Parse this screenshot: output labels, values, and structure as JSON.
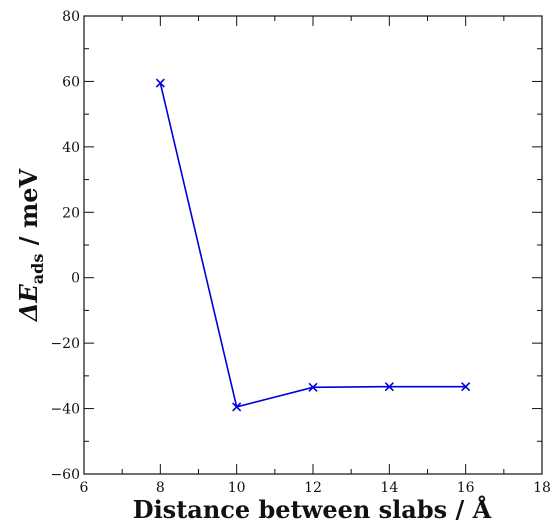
{
  "chart_data": {
    "type": "line",
    "title": "",
    "xlabel": "Distance between slabs / Å",
    "ylabel": {
      "prefix": "ΔE",
      "subscript": "ads",
      "suffix": " / meV"
    },
    "xlim": [
      6,
      18
    ],
    "ylim": [
      -60,
      80
    ],
    "xticks": [
      6,
      8,
      10,
      12,
      14,
      16,
      18
    ],
    "yticks": [
      -60,
      -40,
      -20,
      0,
      20,
      40,
      60,
      80
    ],
    "xtick_labels": [
      "6",
      "8",
      "10",
      "12",
      "14",
      "16",
      "18"
    ],
    "ytick_labels": [
      "−60",
      "−40",
      "−20",
      "0",
      "20",
      "40",
      "60",
      "80"
    ],
    "x_minor_step": 1,
    "y_minor_step": 10,
    "grid": false,
    "legend": "none",
    "series": [
      {
        "marker": "x",
        "color": "#0000dd",
        "x": [
          8,
          10,
          12,
          14,
          16
        ],
        "y": [
          59.5,
          -39.5,
          -33.5,
          -33.3,
          -33.3
        ]
      }
    ]
  }
}
